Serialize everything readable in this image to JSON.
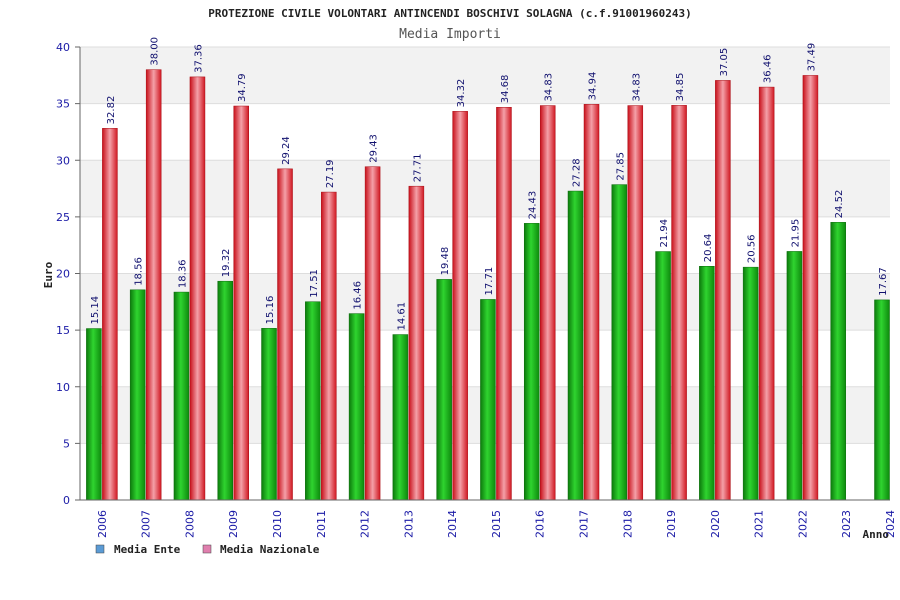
{
  "chart_data": {
    "type": "bar",
    "title": "PROTEZIONE CIVILE VOLONTARI ANTINCENDI BOSCHIVI SOLAGNA (c.f.91001960243)",
    "subtitle": "Media Importi",
    "xlabel": "Anno",
    "ylabel": "Euro",
    "ylim": [
      0,
      40
    ],
    "yticks": [
      0,
      5,
      10,
      15,
      20,
      25,
      30,
      35,
      40
    ],
    "categories": [
      "2006",
      "2007",
      "2008",
      "2009",
      "2010",
      "2011",
      "2012",
      "2013",
      "2014",
      "2015",
      "2016",
      "2017",
      "2018",
      "2019",
      "2020",
      "2021",
      "2022",
      "2023",
      "2024"
    ],
    "series": [
      {
        "name": "Media Ente",
        "color": "#1aa81a",
        "legend_color": "#5b9bd5",
        "values": [
          15.14,
          18.56,
          18.36,
          19.32,
          15.16,
          17.51,
          16.46,
          14.61,
          19.48,
          17.71,
          24.43,
          27.28,
          27.85,
          21.94,
          20.64,
          20.56,
          21.95,
          24.52,
          17.67
        ],
        "labels": [
          "15.14",
          "18.56",
          "18.36",
          "19.32",
          "15.16",
          "17.51",
          "16.46",
          "14.61",
          "19.48",
          "17.71",
          "24.43",
          "27.28",
          "27.85",
          "21.94",
          "20.64",
          "20.56",
          "21.95",
          "24.52",
          "17.67"
        ]
      },
      {
        "name": "Media Nazionale",
        "color": "#e8202a",
        "legend_color": "#e07fae",
        "values": [
          32.82,
          38.0,
          37.36,
          34.79,
          29.24,
          27.19,
          29.43,
          27.71,
          34.32,
          34.68,
          34.83,
          34.94,
          34.83,
          34.85,
          37.05,
          36.46,
          37.49,
          null,
          null
        ],
        "labels": [
          "32.82",
          "38.00",
          "37.36",
          "34.79",
          "29.24",
          "27.19",
          "29.43",
          "27.71",
          "34.32",
          "34.68",
          "34.83",
          "34.94",
          "34.83",
          "34.85",
          "37.05",
          "36.46",
          "37.49",
          "",
          ""
        ]
      }
    ],
    "legend_position": "bottom-left",
    "grid": true
  }
}
